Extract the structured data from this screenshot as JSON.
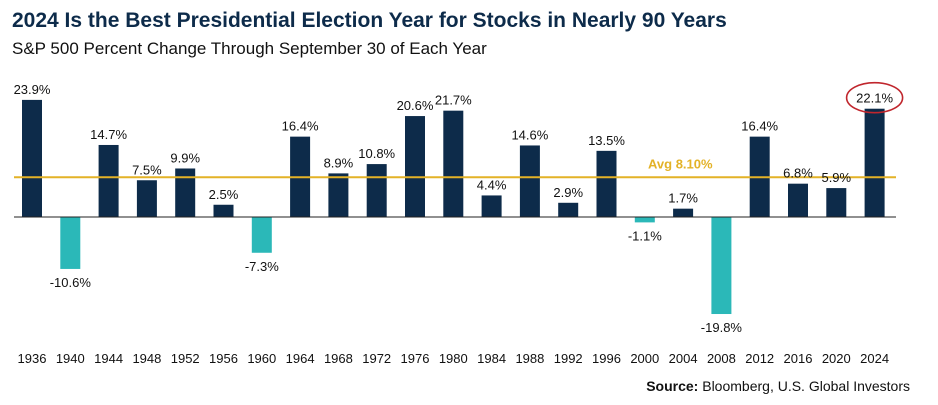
{
  "header": {
    "title": "2024 Is the Best Presidential Election Year for Stocks in Nearly 90 Years",
    "subtitle": "S&P 500 Percent Change Through September 30 of Each Year"
  },
  "footer": {
    "source_label": "Source:",
    "source_text": "Bloomberg, U.S. Global Investors"
  },
  "chart_data": {
    "type": "bar",
    "title": "2024 Is the Best Presidential Election Year for Stocks in Nearly 90 Years",
    "subtitle": "S&P 500 Percent Change Through September 30 of Each Year",
    "xlabel": "",
    "ylabel": "",
    "categories": [
      "1936",
      "1940",
      "1944",
      "1948",
      "1952",
      "1956",
      "1960",
      "1964",
      "1968",
      "1972",
      "1976",
      "1980",
      "1984",
      "1988",
      "1992",
      "1996",
      "2000",
      "2004",
      "2008",
      "2012",
      "2016",
      "2020",
      "2024"
    ],
    "values": [
      23.9,
      -10.6,
      14.7,
      7.5,
      9.9,
      2.5,
      -7.3,
      16.4,
      8.9,
      10.8,
      20.6,
      21.7,
      4.4,
      14.6,
      2.9,
      13.5,
      -1.1,
      1.7,
      -19.8,
      16.4,
      6.8,
      5.9,
      22.1
    ],
    "value_labels": [
      "23.9%",
      "-10.6%",
      "14.7%",
      "7.5%",
      "9.9%",
      "2.5%",
      "-7.3%",
      "16.4%",
      "8.9%",
      "10.8%",
      "20.6%",
      "21.7%",
      "4.4%",
      "14.6%",
      "2.9%",
      "13.5%",
      "-1.1%",
      "1.7%",
      "-19.8%",
      "16.4%",
      "6.8%",
      "5.9%",
      "22.1%"
    ],
    "average": {
      "value": 8.1,
      "label": "Avg  8.10%"
    },
    "highlight": {
      "category": "2024",
      "note": "circled"
    },
    "colors": {
      "positive": "#0d2b4a",
      "negative": "#2bb8b8",
      "average_line": "#e3b227",
      "highlight_circle": "#c0262d"
    },
    "ylim": [
      -24,
      24
    ],
    "grid": false,
    "legend": "none"
  }
}
